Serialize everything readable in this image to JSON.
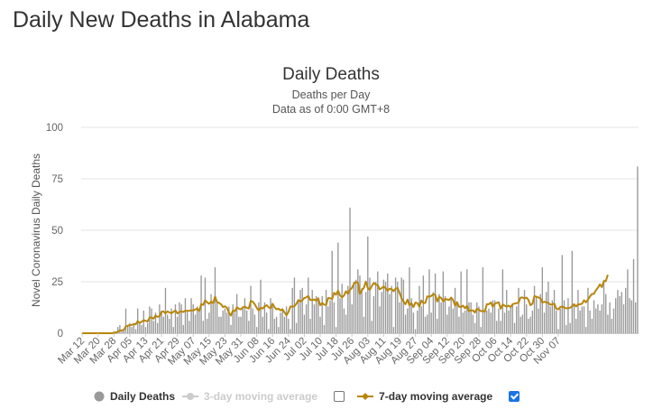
{
  "page": {
    "title": "Daily New Deaths in Alabama"
  },
  "chart_data": {
    "type": "bar",
    "title": "Daily Deaths",
    "subtitle": "Deaths per Day",
    "subtitle2": "Data as of 0:00 GMT+8",
    "xlabel": "",
    "ylabel": "Novel Coronavirus Daily Deaths",
    "ylim": [
      0,
      100
    ],
    "yticks": [
      0,
      25,
      50,
      75,
      100
    ],
    "grid": true,
    "legend_position": "bottom",
    "x_start": "Mar 12",
    "x_tick_labels": [
      "Mar 12",
      "Mar 20",
      "Mar 28",
      "Apr 05",
      "Apr 13",
      "Apr 21",
      "Apr 29",
      "May 07",
      "May 15",
      "May 23",
      "May 31",
      "Jun 08",
      "Jun 16",
      "Jun 24",
      "Jul 02",
      "Jul 10",
      "Jul 18",
      "Jul 26",
      "Aug 03",
      "Aug 11",
      "Aug 19",
      "Aug 27",
      "Sep 04",
      "Sep 12",
      "Sep 20",
      "Sep 28",
      "Oct 06",
      "Oct 14",
      "Oct 22",
      "Oct 30",
      "Nov 07"
    ],
    "series": [
      {
        "name": "Daily Deaths",
        "type": "bar",
        "color": "#999999",
        "visible": true,
        "values": [
          0,
          0,
          0,
          0,
          0,
          0,
          0,
          0,
          0,
          0,
          0,
          0,
          0,
          0,
          0,
          0,
          1,
          1,
          3,
          4,
          1,
          2,
          12,
          4,
          5,
          3,
          4,
          2,
          12,
          5,
          4,
          11,
          3,
          5,
          13,
          12,
          6,
          10,
          5,
          14,
          11,
          8,
          22,
          9,
          7,
          12,
          3,
          14,
          8,
          15,
          14,
          4,
          17,
          11,
          6,
          17,
          14,
          9,
          13,
          11,
          28,
          6,
          27,
          7,
          10,
          19,
          14,
          32,
          15,
          8,
          8,
          11,
          12,
          10,
          13,
          4,
          14,
          10,
          19,
          8,
          8,
          12,
          17,
          11,
          6,
          23,
          12,
          9,
          3,
          15,
          26,
          8,
          15,
          10,
          2,
          17,
          13,
          7,
          8,
          3,
          10,
          12,
          8,
          13,
          7,
          2,
          22,
          27,
          5,
          16,
          21,
          22,
          9,
          14,
          27,
          7,
          21,
          14,
          18,
          16,
          8,
          18,
          4,
          21,
          13,
          16,
          40,
          15,
          3,
          44,
          17,
          24,
          12,
          9,
          23,
          61,
          14,
          25,
          26,
          31,
          28,
          22,
          8,
          20,
          47,
          27,
          6,
          18,
          25,
          30,
          13,
          20,
          26,
          25,
          29,
          19,
          23,
          3,
          27,
          25,
          15,
          27,
          26,
          9,
          12,
          32,
          17,
          10,
          2,
          11,
          23,
          13,
          28,
          8,
          9,
          31,
          10,
          20,
          29,
          7,
          19,
          15,
          30,
          18,
          9,
          13,
          17,
          12,
          22,
          14,
          8,
          30,
          10,
          11,
          31,
          15,
          15,
          9,
          5,
          15,
          13,
          3,
          32,
          12,
          11,
          12,
          10,
          16,
          16,
          6,
          12,
          6,
          31,
          10,
          21,
          11,
          13,
          14,
          5,
          13,
          22,
          8,
          9,
          21,
          14,
          7,
          8,
          11,
          23,
          18,
          12,
          19,
          32,
          10,
          20,
          25,
          13,
          16,
          21,
          11,
          2,
          12,
          38,
          16,
          4,
          17,
          5,
          40,
          14,
          7,
          21,
          11,
          13,
          13,
          3,
          22,
          11,
          7,
          16,
          12,
          14,
          11,
          14,
          26,
          19,
          9,
          15,
          7,
          12,
          17,
          21,
          18,
          20,
          14,
          22,
          31,
          17,
          16,
          36,
          15,
          81
        ]
      },
      {
        "name": "3-day moving average",
        "type": "line",
        "color": "#cccccc",
        "visible": false
      },
      {
        "name": "7-day moving average",
        "type": "line",
        "color": "#b8860b",
        "visible": true,
        "values": [
          0,
          0,
          0,
          0,
          0,
          0,
          0,
          0,
          0,
          0,
          0,
          0,
          0,
          0,
          0,
          0,
          0.1,
          0.3,
          0.7,
          1.3,
          1.4,
          1.6,
          3.3,
          3.6,
          4,
          4,
          4.5,
          4.3,
          5.9,
          5,
          5.6,
          6.3,
          6,
          5.7,
          7.6,
          7.6,
          7.1,
          8.6,
          7.9,
          8.3,
          10.3,
          10.6,
          9.6,
          10.6,
          10.1,
          9.7,
          10.4,
          11.1,
          9.6,
          10.3,
          10.6,
          10.3,
          10.9,
          10.9,
          10.9,
          11.1,
          11.1,
          11.5,
          12,
          10.8,
          14.1,
          13.7,
          16,
          15,
          14.3,
          15.4,
          14.5,
          17.8,
          15.1,
          14.7,
          14.1,
          12.7,
          13.1,
          12.3,
          10,
          8.6,
          11.1,
          10.6,
          12.6,
          11.9,
          11.6,
          12.6,
          12.9,
          12.3,
          12,
          15.7,
          15.3,
          14.1,
          12.3,
          11.1,
          12.4,
          12,
          13,
          13.6,
          12.6,
          12.1,
          14.3,
          12.6,
          11.6,
          11.9,
          11.1,
          11.6,
          10.1,
          8.7,
          10.3,
          13,
          12.9,
          13.1,
          14.3,
          16.1,
          15.4,
          16,
          17.1,
          17.4,
          18.1,
          16.1,
          16.1,
          16.4,
          15.7,
          17,
          13.6,
          14.7,
          13.9,
          13.7,
          17.1,
          17,
          16.6,
          19.6,
          18.7,
          20.7,
          18.3,
          17.4,
          18.3,
          20.4,
          19.1,
          21.1,
          22,
          24,
          24.9,
          24.6,
          19.1,
          20.9,
          22,
          25.1,
          22,
          21.1,
          22.9,
          24.4,
          23.6,
          23.4,
          21.3,
          21.9,
          22.7,
          21.9,
          20.6,
          21.6,
          21.4,
          20.4,
          21.6,
          22,
          19.6,
          16.9,
          15.4,
          14.1,
          16.3,
          13.6,
          14.6,
          12.7,
          14.9,
          14.6,
          12.9,
          15.9,
          14.7,
          14.7,
          17.9,
          17.7,
          18.1,
          19,
          18.6,
          15.4,
          17.7,
          17.1,
          15.4,
          16.7,
          16.4,
          16.1,
          17.3,
          16.1,
          13.4,
          15.1,
          12.9,
          12.7,
          13.4,
          12.1,
          13.3,
          10.7,
          11.1,
          11.1,
          10,
          11.9,
          11.4,
          10.7,
          10.9,
          10.4,
          14.1,
          14.1,
          14.9,
          12.9,
          14.3,
          14.7,
          15,
          11.9,
          13.9,
          13.4,
          12.9,
          13.4,
          12.7,
          14.1,
          14.4,
          14.6,
          14.9,
          17.3,
          17.4,
          16.9,
          17.3,
          16.1,
          13.6,
          14.3,
          18,
          17.7,
          17.4,
          16.9,
          14.9,
          15.3,
          15,
          14.7,
          13.9,
          14,
          14.4,
          11.9,
          11.6,
          12.7,
          13,
          12.4,
          12.1,
          12.1,
          12.4,
          13.1,
          14.1,
          13,
          14,
          14.1,
          14.3,
          16,
          15,
          16.3,
          17.9,
          19.1,
          19.1,
          20.9,
          22.1,
          23.7,
          22.4,
          25.3,
          25.3,
          28.4
        ]
      }
    ]
  },
  "legend": {
    "items": [
      {
        "label": "Daily Deaths",
        "marker": "circle",
        "visible": true
      },
      {
        "label": "3-day moving average",
        "marker": "circle-line",
        "visible": false,
        "checked": false
      },
      {
        "label": "7-day moving average",
        "marker": "diamond-line",
        "visible": true,
        "checked": true
      }
    ]
  },
  "colors": {
    "bar": "#999999",
    "ma7": "#b8860b",
    "disabled": "#cccccc",
    "grid": "#e6e6e6",
    "axis_text": "#666666",
    "checkbox_checked": "#1a73e8"
  }
}
